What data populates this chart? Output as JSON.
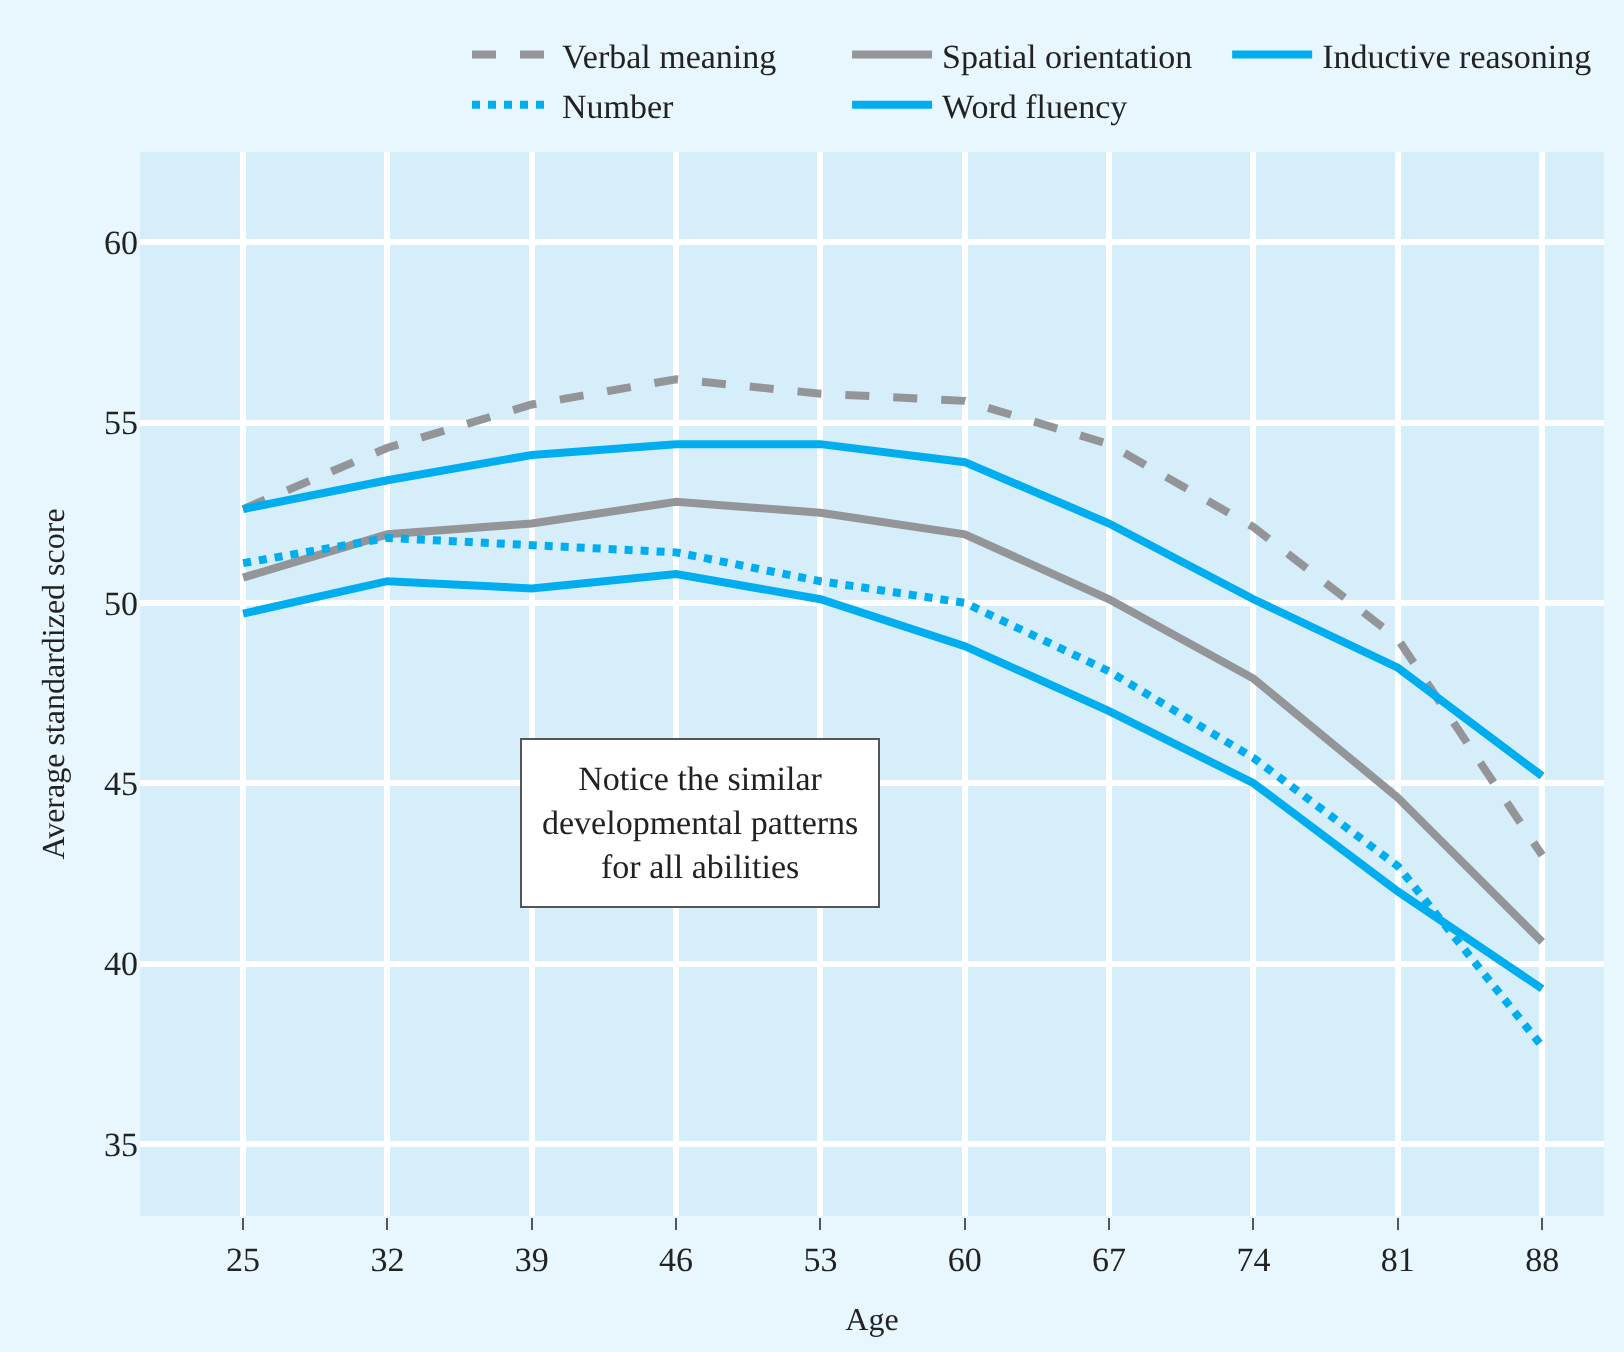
{
  "chart_data": {
    "type": "line",
    "xlabel": "Age",
    "ylabel": "Average standardized score",
    "x": [
      25,
      32,
      39,
      46,
      53,
      60,
      67,
      74,
      81,
      88
    ],
    "xlim": [
      20,
      91
    ],
    "xticks": [
      25,
      32,
      39,
      46,
      53,
      60,
      67,
      74,
      81,
      88
    ],
    "ylim": [
      33,
      62.5
    ],
    "yticks": [
      35,
      40,
      45,
      50,
      55,
      60
    ],
    "grid": true,
    "legend": "top",
    "marker": "none",
    "series": [
      {
        "name": "Verbal meaning",
        "color": "#939598",
        "line_style": "dashed",
        "values": [
          52.6,
          54.3,
          55.5,
          56.2,
          55.8,
          55.6,
          54.4,
          52.1,
          49.0,
          43.0
        ]
      },
      {
        "name": "Spatial orientation",
        "color": "#939598",
        "line_style": "solid",
        "values": [
          50.7,
          51.9,
          52.2,
          52.8,
          52.5,
          51.9,
          50.1,
          47.9,
          44.6,
          40.6
        ]
      },
      {
        "name": "Inductive reasoning",
        "color": "#00aeef",
        "line_style": "solid",
        "values": [
          52.6,
          53.4,
          54.1,
          54.4,
          54.4,
          53.9,
          52.2,
          50.1,
          48.2,
          45.2
        ]
      },
      {
        "name": "Number",
        "color": "#00aeef",
        "line_style": "dotted",
        "values": [
          51.1,
          51.8,
          51.6,
          51.4,
          50.6,
          50.0,
          48.1,
          45.7,
          42.7,
          37.7
        ]
      },
      {
        "name": "Word fluency",
        "color": "#00aeef",
        "line_style": "solid",
        "values": [
          49.7,
          50.6,
          50.4,
          50.8,
          50.1,
          48.8,
          47.0,
          45.0,
          42.0,
          39.3
        ]
      }
    ],
    "annotations": [
      "Notice the similar\ndevelopmental patterns\nfor all abilities"
    ]
  }
}
